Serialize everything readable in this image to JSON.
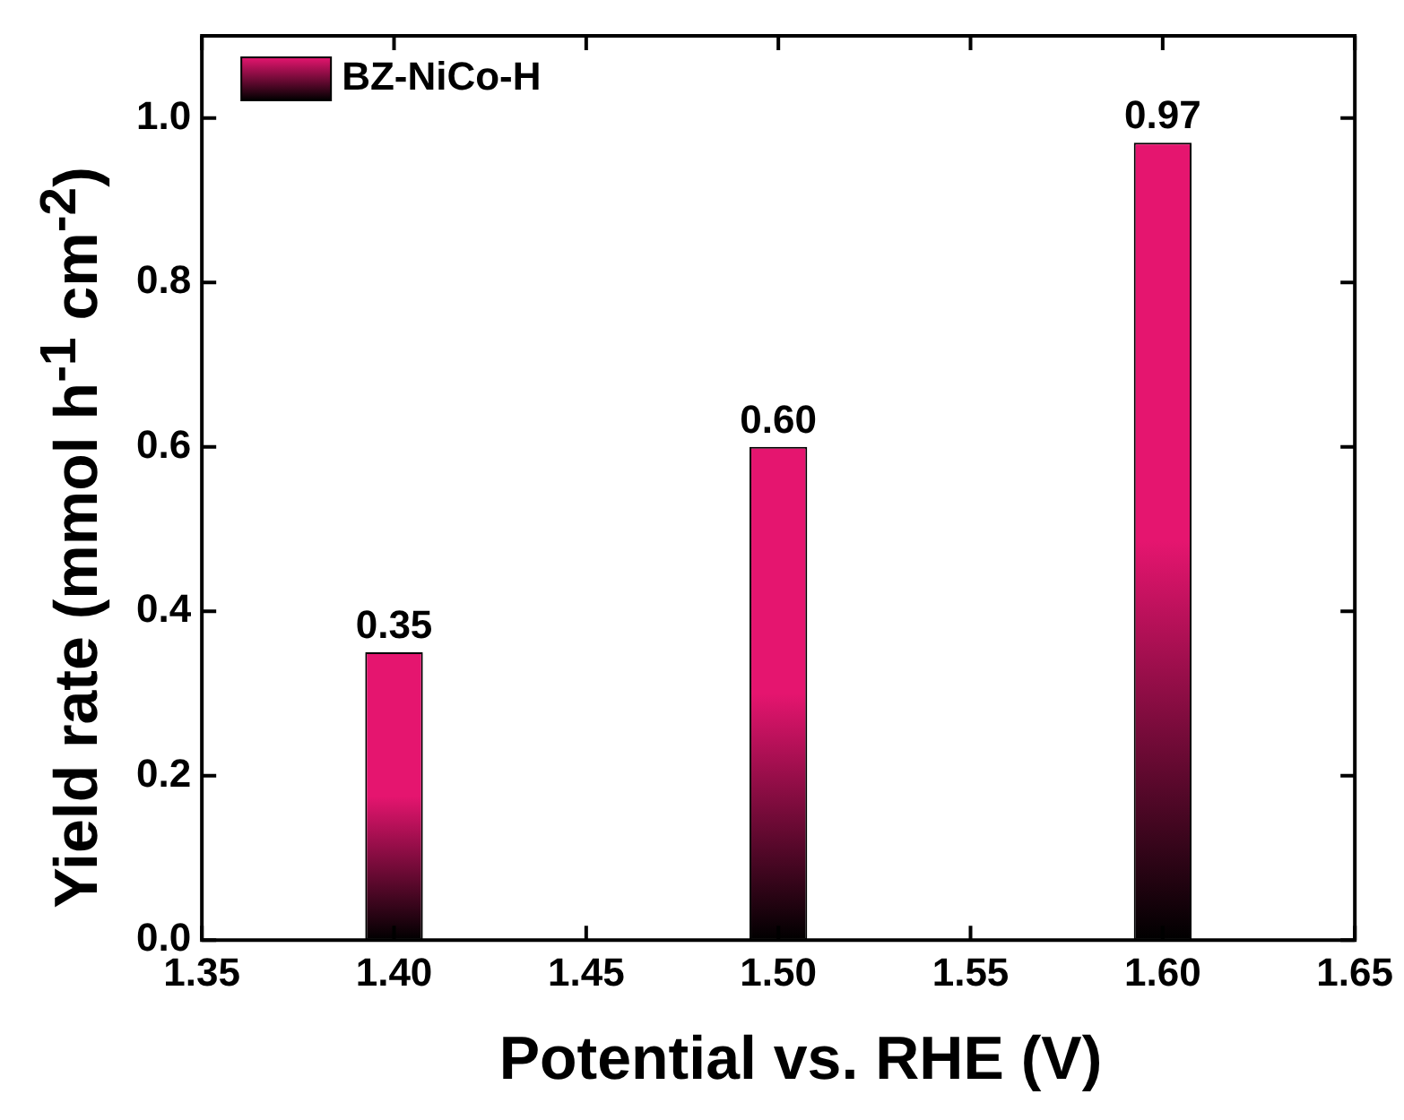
{
  "chart_data": {
    "type": "bar",
    "xlabel": "Potential vs. RHE (V)",
    "ylabel": "Yield rate (mmol h$^{-1}$ cm$^{-2}$)",
    "x": [
      1.4,
      1.5,
      1.6
    ],
    "series": [
      {
        "name": "BZ-NiCo-H",
        "color": "#e5156f",
        "values": [
          0.35,
          0.6,
          0.97
        ],
        "value_labels": [
          "0.35",
          "0.60",
          "0.97"
        ]
      }
    ],
    "xlim": [
      1.35,
      1.65
    ],
    "xticks": [
      {
        "value": 1.35,
        "label": "1.35"
      },
      {
        "value": 1.4,
        "label": "1.40"
      },
      {
        "value": 1.45,
        "label": "1.45"
      },
      {
        "value": 1.5,
        "label": "1.50"
      },
      {
        "value": 1.55,
        "label": "1.55"
      },
      {
        "value": 1.6,
        "label": "1.60"
      },
      {
        "value": 1.65,
        "label": "1.65"
      }
    ],
    "ylim": [
      0,
      1.1
    ],
    "yticks": [
      {
        "value": 0,
        "label": "0.0"
      },
      {
        "value": 0.2,
        "label": "0.2"
      },
      {
        "value": 0.4,
        "label": "0.4"
      },
      {
        "value": 0.6,
        "label": "0.6"
      },
      {
        "value": 0.8,
        "label": "0.8"
      },
      {
        "value": 1,
        "label": "1.0"
      }
    ],
    "grid": false,
    "legend": "top left"
  }
}
